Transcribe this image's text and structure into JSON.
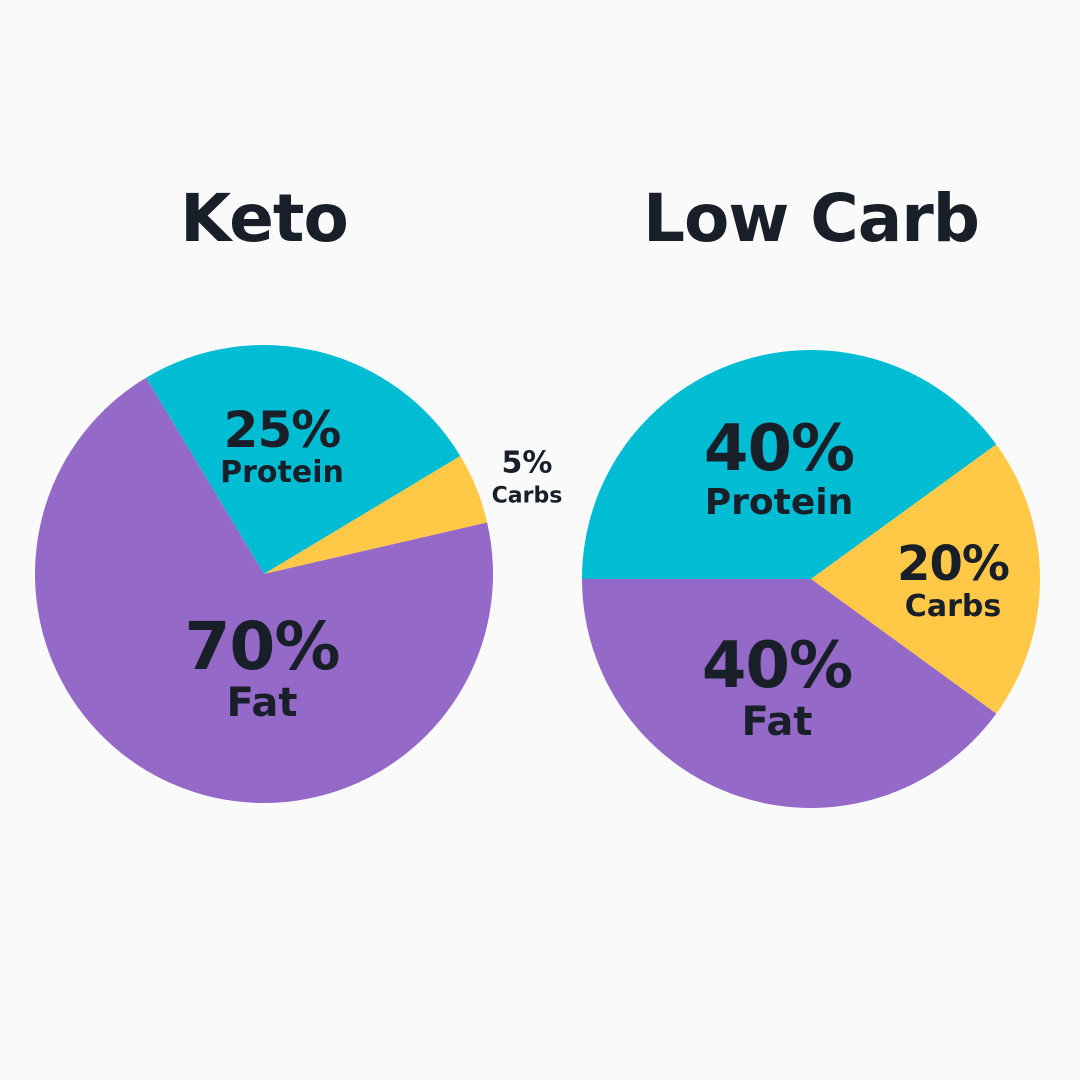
{
  "page": {
    "background_color": "#FAFAFB",
    "text_color": "#191F28"
  },
  "chart_data": [
    {
      "type": "pie",
      "title": "Keto",
      "start_angle_deg": 329,
      "direction": "clockwise",
      "legend": "none",
      "labels_position": "inside",
      "slices": [
        {
          "label": "Protein",
          "value_pct": 25,
          "value_label": "25%",
          "color": "#00BDD4",
          "label_placement": "inside"
        },
        {
          "label": "Carbs",
          "value_pct": 5,
          "value_label": "5%",
          "color": "#FFC847",
          "label_placement": "outside-right"
        },
        {
          "label": "Fat",
          "value_pct": 70,
          "value_label": "70%",
          "color": "#9469C8",
          "label_placement": "inside"
        }
      ]
    },
    {
      "type": "pie",
      "title": "Low Carb",
      "start_angle_deg": 270,
      "direction": "clockwise",
      "legend": "none",
      "labels_position": "inside",
      "slices": [
        {
          "label": "Protein",
          "value_pct": 40,
          "value_label": "40%",
          "color": "#00BDD4",
          "label_placement": "inside"
        },
        {
          "label": "Carbs",
          "value_pct": 20,
          "value_label": "20%",
          "color": "#FFC847",
          "label_placement": "inside"
        },
        {
          "label": "Fat",
          "value_pct": 40,
          "value_label": "40%",
          "color": "#9469C8",
          "label_placement": "inside"
        }
      ]
    }
  ]
}
